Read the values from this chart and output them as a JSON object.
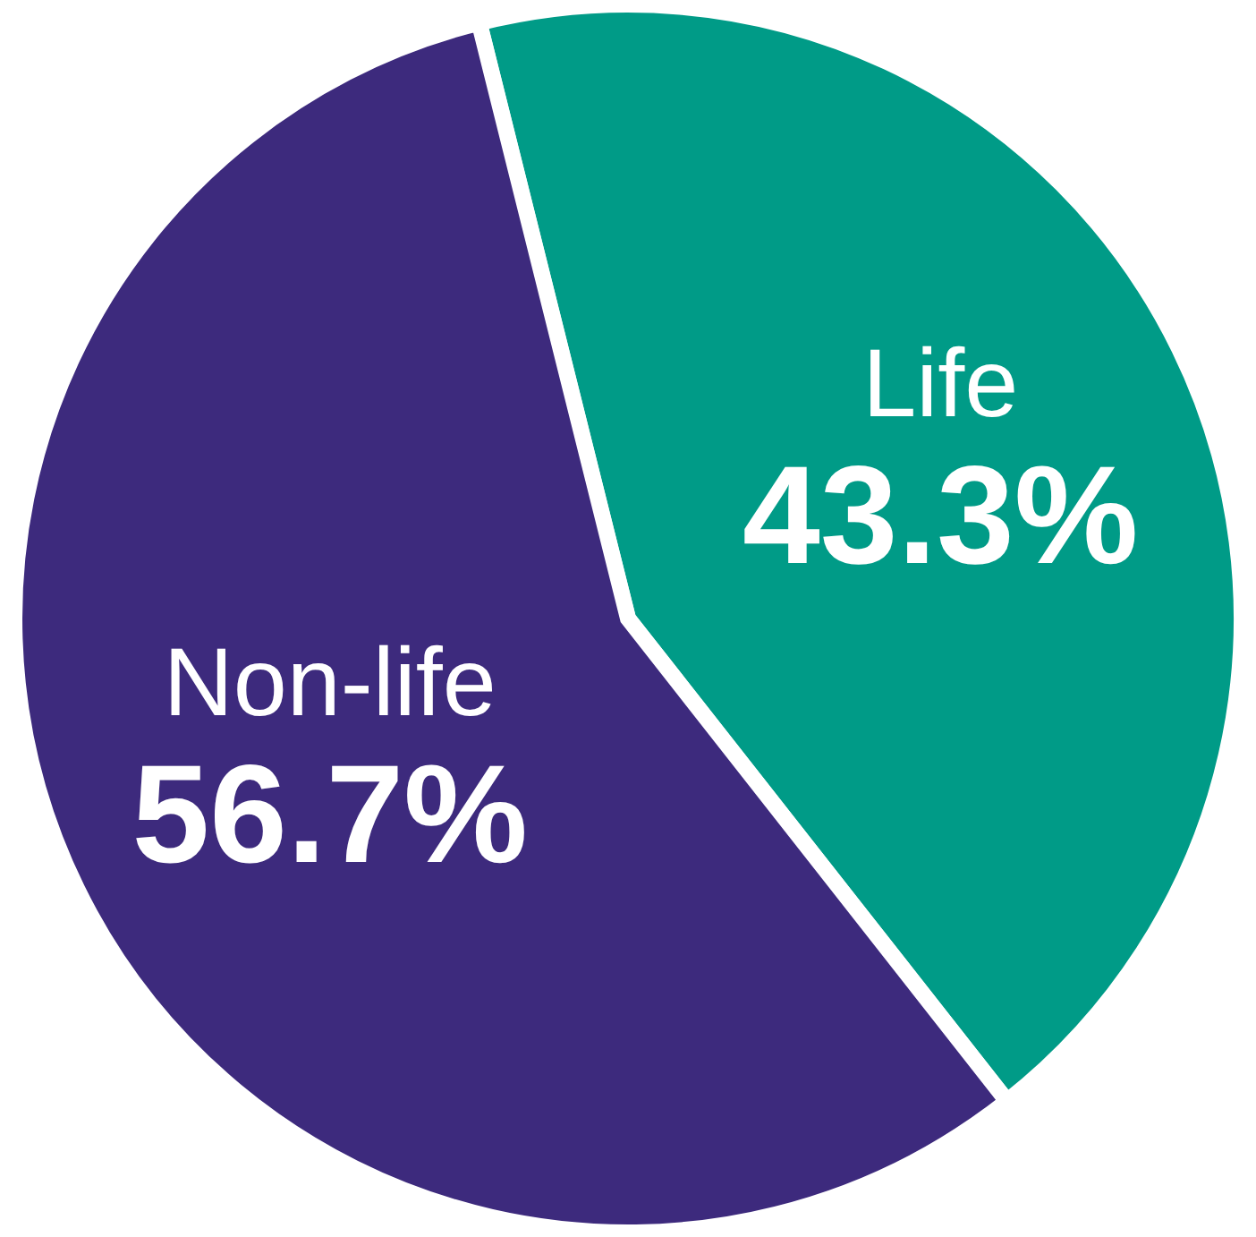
{
  "chart_data": {
    "type": "pie",
    "categories": [
      "Life",
      "Non-life"
    ],
    "values": [
      43.3,
      56.7
    ],
    "colors": [
      "#009b87",
      "#3d2a7d"
    ],
    "value_labels": [
      "43.3%",
      "56.7%"
    ]
  }
}
